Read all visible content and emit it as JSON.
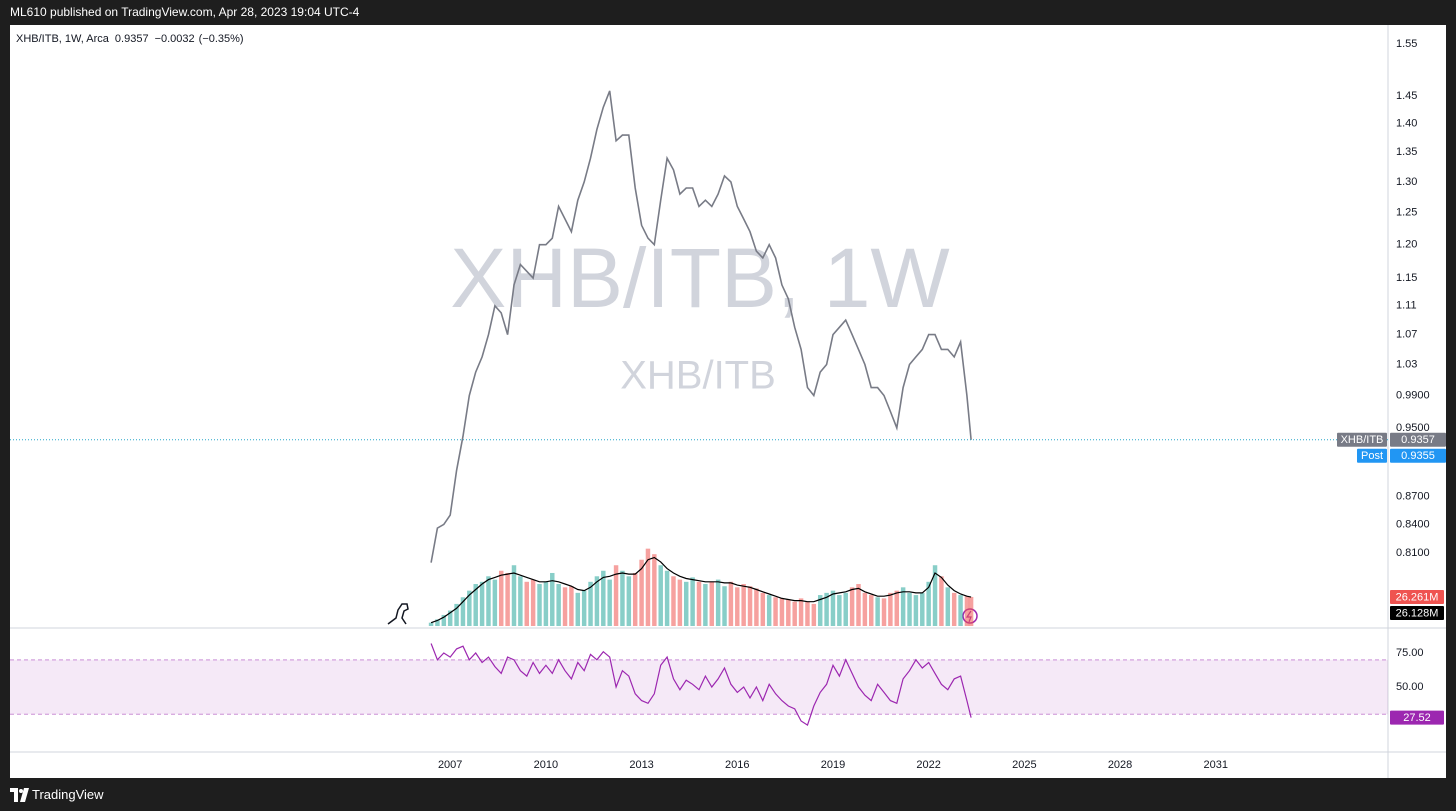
{
  "header": {
    "published": "ML610 published on TradingView.com, Apr 28, 2023 19:04 UTC-4",
    "brand": "TradingView"
  },
  "chart_data": {
    "type": "line",
    "legend_text": "XHB/ITB, 1W, Arca",
    "change": "−0.0032",
    "change_pct": "(−0.35%)",
    "watermark": "XHB/ITB, 1W",
    "watermark_sub": "XHB/ITB",
    "log_scale": true,
    "x": [
      2006.4,
      2006.6,
      2006.8,
      2007.0,
      2007.2,
      2007.4,
      2007.6,
      2007.8,
      2008.0,
      2008.2,
      2008.4,
      2008.6,
      2008.8,
      2009.0,
      2009.2,
      2009.4,
      2009.6,
      2009.8,
      2010.0,
      2010.2,
      2010.4,
      2010.6,
      2010.8,
      2011.0,
      2011.2,
      2011.4,
      2011.6,
      2011.8,
      2012.0,
      2012.2,
      2012.4,
      2012.6,
      2012.8,
      2013.0,
      2013.2,
      2013.4,
      2013.6,
      2013.8,
      2014.0,
      2014.2,
      2014.4,
      2014.6,
      2014.8,
      2015.0,
      2015.2,
      2015.4,
      2015.6,
      2015.8,
      2016.0,
      2016.2,
      2016.4,
      2016.6,
      2016.8,
      2017.0,
      2017.2,
      2017.4,
      2017.6,
      2017.8,
      2018.0,
      2018.2,
      2018.4,
      2018.6,
      2018.8,
      2019.0,
      2019.2,
      2019.4,
      2019.6,
      2019.8,
      2020.0,
      2020.2,
      2020.4,
      2020.6,
      2020.8,
      2021.0,
      2021.2,
      2021.4,
      2021.6,
      2021.8,
      2022.0,
      2022.2,
      2022.4,
      2022.6,
      2022.8,
      2023.0,
      2023.2,
      2023.33
    ],
    "xlim": [
      1993.2,
      2036.4
    ],
    "xticks": [
      2007,
      2010,
      2013,
      2016,
      2019,
      2022,
      2025,
      2028,
      2031
    ],
    "ylim": [
      0.736,
      1.588
    ],
    "yticks": [
      1.55,
      1.45,
      {
        "value": 1.4,
        "label": "1.40"
      },
      1.35,
      {
        "value": 1.3,
        "label": "1.30"
      },
      1.25,
      {
        "value": 1.2,
        "label": "1.20"
      },
      1.15,
      1.11,
      1.07,
      1.03,
      {
        "value": 0.99,
        "label": "0.9900"
      },
      {
        "value": 0.95,
        "label": "0.9500"
      },
      {
        "value": 0.87,
        "label": "0.8700"
      },
      {
        "value": 0.84,
        "label": "0.8400"
      },
      {
        "value": 0.81,
        "label": "0.8100"
      }
    ],
    "series": [
      {
        "name": "XHB/ITB",
        "color": "#787b86",
        "values": [
          0.8,
          0.836,
          0.84,
          0.85,
          0.9,
          0.94,
          0.99,
          1.02,
          1.04,
          1.07,
          1.11,
          1.1,
          1.07,
          1.14,
          1.17,
          1.16,
          1.15,
          1.2,
          1.2,
          1.21,
          1.26,
          1.24,
          1.22,
          1.27,
          1.3,
          1.34,
          1.39,
          1.43,
          1.46,
          1.37,
          1.38,
          1.38,
          1.29,
          1.23,
          1.21,
          1.2,
          1.27,
          1.34,
          1.32,
          1.28,
          1.29,
          1.29,
          1.26,
          1.27,
          1.26,
          1.28,
          1.31,
          1.3,
          1.26,
          1.24,
          1.22,
          1.19,
          1.18,
          1.2,
          1.18,
          1.14,
          1.12,
          1.08,
          1.05,
          1.0,
          0.99,
          1.02,
          1.03,
          1.07,
          1.08,
          1.09,
          1.07,
          1.05,
          1.03,
          1.0,
          1.0,
          0.99,
          0.97,
          0.95,
          1.0,
          1.03,
          1.04,
          1.05,
          1.07,
          1.07,
          1.05,
          1.05,
          1.04,
          1.06,
          0.99,
          0.9357
        ]
      }
    ],
    "post": {
      "label": "Post",
      "value": 0.9355,
      "color": "#2196f3"
    },
    "price_line_color": "#26a6c9",
    "volume": {
      "up_color": "#26a69a",
      "down_color": "#ef5350",
      "ylim": [
        0,
        544
      ],
      "last_label": "26.261M",
      "values": [
        3,
        6,
        10,
        14,
        20,
        26,
        32,
        38,
        40,
        45,
        42,
        50,
        48,
        55,
        45,
        40,
        42,
        38,
        40,
        48,
        38,
        35,
        36,
        30,
        32,
        40,
        45,
        50,
        42,
        55,
        50,
        45,
        48,
        60,
        70,
        65,
        55,
        50,
        45,
        42,
        40,
        44,
        40,
        38,
        40,
        42,
        36,
        40,
        35,
        38,
        36,
        34,
        30,
        28,
        26,
        25,
        24,
        22,
        25,
        22,
        20,
        28,
        30,
        32,
        28,
        30,
        35,
        38,
        30,
        28,
        26,
        25,
        30,
        32,
        35,
        30,
        28,
        30,
        40,
        55,
        45,
        35,
        30,
        28,
        27,
        26.261
      ],
      "ma": {
        "color": "#000000",
        "last_label": "26.128M",
        "values": [
          3,
          5,
          8,
          12,
          16,
          22,
          28,
          33,
          38,
          42,
          44,
          46,
          47,
          48,
          46,
          44,
          42,
          40,
          40,
          41,
          40,
          38,
          36,
          33,
          32,
          35,
          40,
          44,
          45,
          47,
          48,
          47,
          47,
          52,
          60,
          62,
          58,
          52,
          48,
          45,
          43,
          42,
          41,
          40,
          40,
          40,
          39,
          39,
          37,
          36,
          35,
          33,
          31,
          29,
          27,
          25,
          24,
          23,
          23,
          22,
          22,
          24,
          26,
          29,
          30,
          31,
          33,
          34,
          31,
          29,
          27,
          27,
          28,
          30,
          31,
          31,
          30,
          30,
          35,
          48,
          44,
          37,
          32,
          29,
          27,
          26.128
        ]
      }
    },
    "rsi": {
      "color": "#9c27b0",
      "ylim": [
        2.2,
        93.4
      ],
      "bands": [
        30,
        70
      ],
      "last_label": "27.52",
      "yticks": [
        {
          "value": 75,
          "label": "75.00"
        },
        {
          "value": 50,
          "label": "50.00"
        }
      ],
      "values": [
        82,
        70,
        75,
        72,
        78,
        80,
        70,
        75,
        68,
        72,
        65,
        60,
        72,
        70,
        62,
        58,
        68,
        60,
        66,
        60,
        70,
        62,
        56,
        68,
        62,
        74,
        70,
        76,
        72,
        50,
        62,
        58,
        45,
        40,
        38,
        45,
        66,
        72,
        56,
        48,
        55,
        52,
        48,
        58,
        50,
        56,
        64,
        52,
        46,
        50,
        42,
        50,
        40,
        52,
        45,
        40,
        36,
        34,
        25,
        22,
        36,
        46,
        52,
        66,
        58,
        70,
        60,
        50,
        44,
        40,
        52,
        46,
        40,
        38,
        56,
        62,
        70,
        64,
        68,
        60,
        52,
        48,
        56,
        58,
        40,
        27.52
      ]
    }
  }
}
